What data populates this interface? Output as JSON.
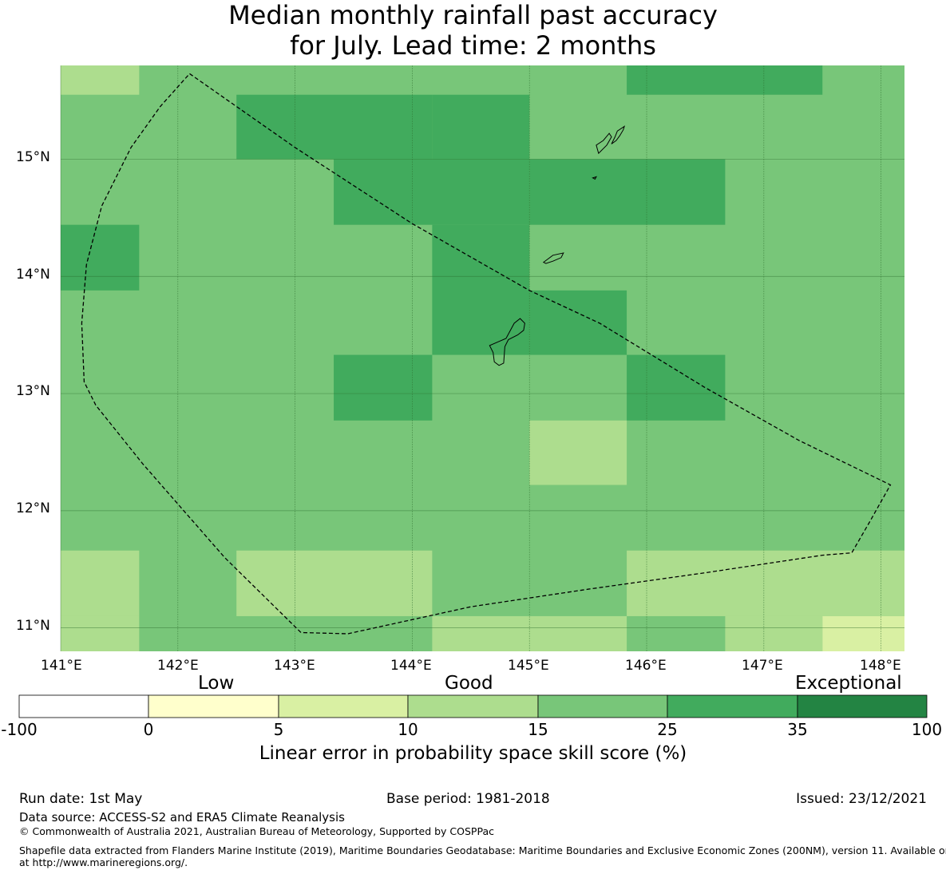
{
  "title": {
    "line1": "Median monthly rainfall past accuracy",
    "line2": "for July. Lead time: 2 months"
  },
  "map": {
    "lat_labels": [
      "15°N",
      "14°N",
      "13°N",
      "12°N",
      "11°N"
    ],
    "lon_labels": [
      "141°E",
      "142°E",
      "143°E",
      "144°E",
      "145°E",
      "146°E",
      "147°E",
      "148°E"
    ],
    "lon_range": [
      141.0,
      148.2
    ],
    "lat_range": [
      10.8,
      15.8
    ],
    "grid": true,
    "skill_cells": [
      {
        "lon": [
          141.0,
          141.67
        ],
        "lat": [
          15.55,
          15.8
        ],
        "class": "10-15"
      },
      {
        "lon": [
          141.0,
          141.67
        ],
        "lat": [
          11.1,
          11.66
        ],
        "class": "10-15"
      },
      {
        "lon": [
          141.0,
          141.67
        ],
        "lat": [
          10.8,
          11.1
        ],
        "class": "10-15"
      },
      {
        "lon": [
          141.0,
          141.67
        ],
        "lat": [
          13.88,
          14.44
        ],
        "class": "25-35"
      },
      {
        "lon": [
          142.5,
          144.17
        ],
        "lat": [
          15.0,
          15.55
        ],
        "class": "25-35"
      },
      {
        "lon": [
          143.33,
          145.0
        ],
        "lat": [
          14.44,
          15.0
        ],
        "class": "25-35"
      },
      {
        "lon": [
          145.0,
          146.67
        ],
        "lat": [
          14.44,
          15.0
        ],
        "class": "25-35"
      },
      {
        "lon": [
          144.17,
          145.0
        ],
        "lat": [
          15.0,
          15.55
        ],
        "class": "25-35"
      },
      {
        "lon": [
          145.83,
          147.5
        ],
        "lat": [
          15.55,
          15.8
        ],
        "class": "25-35"
      },
      {
        "lon": [
          144.17,
          145.0
        ],
        "lat": [
          13.33,
          14.44
        ],
        "class": "25-35"
      },
      {
        "lon": [
          145.0,
          145.83
        ],
        "lat": [
          13.33,
          13.88
        ],
        "class": "25-35"
      },
      {
        "lon": [
          143.33,
          144.17
        ],
        "lat": [
          12.77,
          13.33
        ],
        "class": "25-35"
      },
      {
        "lon": [
          145.83,
          146.67
        ],
        "lat": [
          12.77,
          13.33
        ],
        "class": "25-35"
      },
      {
        "lon": [
          145.0,
          145.83
        ],
        "lat": [
          12.22,
          12.77
        ],
        "class": "10-15"
      },
      {
        "lon": [
          142.5,
          144.17
        ],
        "lat": [
          11.1,
          11.66
        ],
        "class": "10-15"
      },
      {
        "lon": [
          145.83,
          148.2
        ],
        "lat": [
          11.1,
          11.66
        ],
        "class": "10-15"
      },
      {
        "lon": [
          144.17,
          145.83
        ],
        "lat": [
          10.8,
          11.1
        ],
        "class": "10-15"
      },
      {
        "lon": [
          146.67,
          147.5
        ],
        "lat": [
          10.8,
          11.1
        ],
        "class": "10-15"
      },
      {
        "lon": [
          147.5,
          148.2
        ],
        "lat": [
          10.8,
          11.1
        ],
        "class": "5-10"
      }
    ],
    "base_class": "15-25",
    "eez_boundary": [
      [
        142.1,
        15.73
      ],
      [
        143.0,
        15.1
      ],
      [
        144.0,
        14.45
      ],
      [
        145.0,
        13.88
      ],
      [
        145.6,
        13.6
      ],
      [
        146.5,
        13.05
      ],
      [
        147.3,
        12.6
      ],
      [
        148.08,
        12.22
      ],
      [
        147.9,
        11.9
      ],
      [
        147.75,
        11.64
      ],
      [
        147.5,
        11.62
      ],
      [
        146.5,
        11.47
      ],
      [
        145.5,
        11.33
      ],
      [
        144.5,
        11.18
      ],
      [
        143.45,
        10.95
      ],
      [
        143.05,
        10.96
      ],
      [
        142.4,
        11.6
      ],
      [
        141.7,
        12.4
      ],
      [
        141.3,
        12.9
      ],
      [
        141.2,
        13.1
      ],
      [
        141.18,
        13.6
      ],
      [
        141.22,
        14.1
      ],
      [
        141.35,
        14.6
      ],
      [
        141.6,
        15.1
      ],
      [
        141.85,
        15.45
      ],
      [
        142.1,
        15.73
      ]
    ],
    "islands": [
      [
        [
          144.73,
          13.44
        ],
        [
          144.8,
          13.47
        ],
        [
          144.87,
          13.6
        ],
        [
          144.92,
          13.64
        ],
        [
          144.96,
          13.6
        ],
        [
          144.95,
          13.54
        ],
        [
          144.9,
          13.5
        ],
        [
          144.82,
          13.46
        ],
        [
          144.79,
          13.4
        ],
        [
          144.78,
          13.26
        ],
        [
          144.74,
          13.24
        ],
        [
          144.7,
          13.27
        ],
        [
          144.69,
          13.35
        ],
        [
          144.66,
          13.41
        ],
        [
          144.73,
          13.44
        ]
      ],
      [
        [
          145.12,
          14.12
        ],
        [
          145.2,
          14.18
        ],
        [
          145.29,
          14.2
        ],
        [
          145.27,
          14.16
        ],
        [
          145.2,
          14.13
        ],
        [
          145.14,
          14.11
        ],
        [
          145.12,
          14.12
        ]
      ],
      [
        [
          145.59,
          15.05
        ],
        [
          145.66,
          15.12
        ],
        [
          145.7,
          15.19
        ],
        [
          145.68,
          15.22
        ],
        [
          145.63,
          15.16
        ],
        [
          145.57,
          15.12
        ],
        [
          145.59,
          15.05
        ]
      ],
      [
        [
          145.7,
          15.13
        ],
        [
          145.73,
          15.19
        ],
        [
          145.75,
          15.24
        ],
        [
          145.81,
          15.28
        ],
        [
          145.8,
          15.25
        ],
        [
          145.77,
          15.2
        ],
        [
          145.74,
          15.16
        ],
        [
          145.7,
          15.13
        ]
      ],
      [
        [
          145.54,
          14.84
        ],
        [
          145.57,
          14.85
        ],
        [
          145.56,
          14.83
        ],
        [
          145.54,
          14.84
        ]
      ]
    ]
  },
  "colorbar": {
    "categories": [
      "Low",
      "Good",
      "Exceptional"
    ],
    "ticks": [
      "-100",
      "0",
      "5",
      "10",
      "15",
      "25",
      "35",
      "100"
    ],
    "colors": [
      "#ffffff",
      "#ffffcc",
      "#d9f0a3",
      "#addd8e",
      "#78c679",
      "#41ab5d",
      "#238443"
    ],
    "class_colors": {
      "5-10": "#d9f0a3",
      "10-15": "#addd8e",
      "15-25": "#78c679",
      "25-35": "#41ab5d"
    },
    "label": "Linear error in probability space skill score (%)"
  },
  "footer": {
    "run_date": "Run date: 1st May",
    "base_period": "Base period: 1981-2018",
    "issued": "Issued: 23/12/2021",
    "data_source": "Data source: ACCESS-S2 and ERA5 Climate Reanalysis",
    "copyright": "© Commonwealth of Australia 2021, Australian Bureau of Meteorology, Supported by COSPPac",
    "shapefile_line1": "Shapefile data extracted from Flanders Marine Institute (2019), Maritime Boundaries Geodatabase: Maritime Boundaries and Exclusive Economic Zones (200NM), version 11. Available online",
    "shapefile_line2": "at http://www.marineregions.org/."
  }
}
